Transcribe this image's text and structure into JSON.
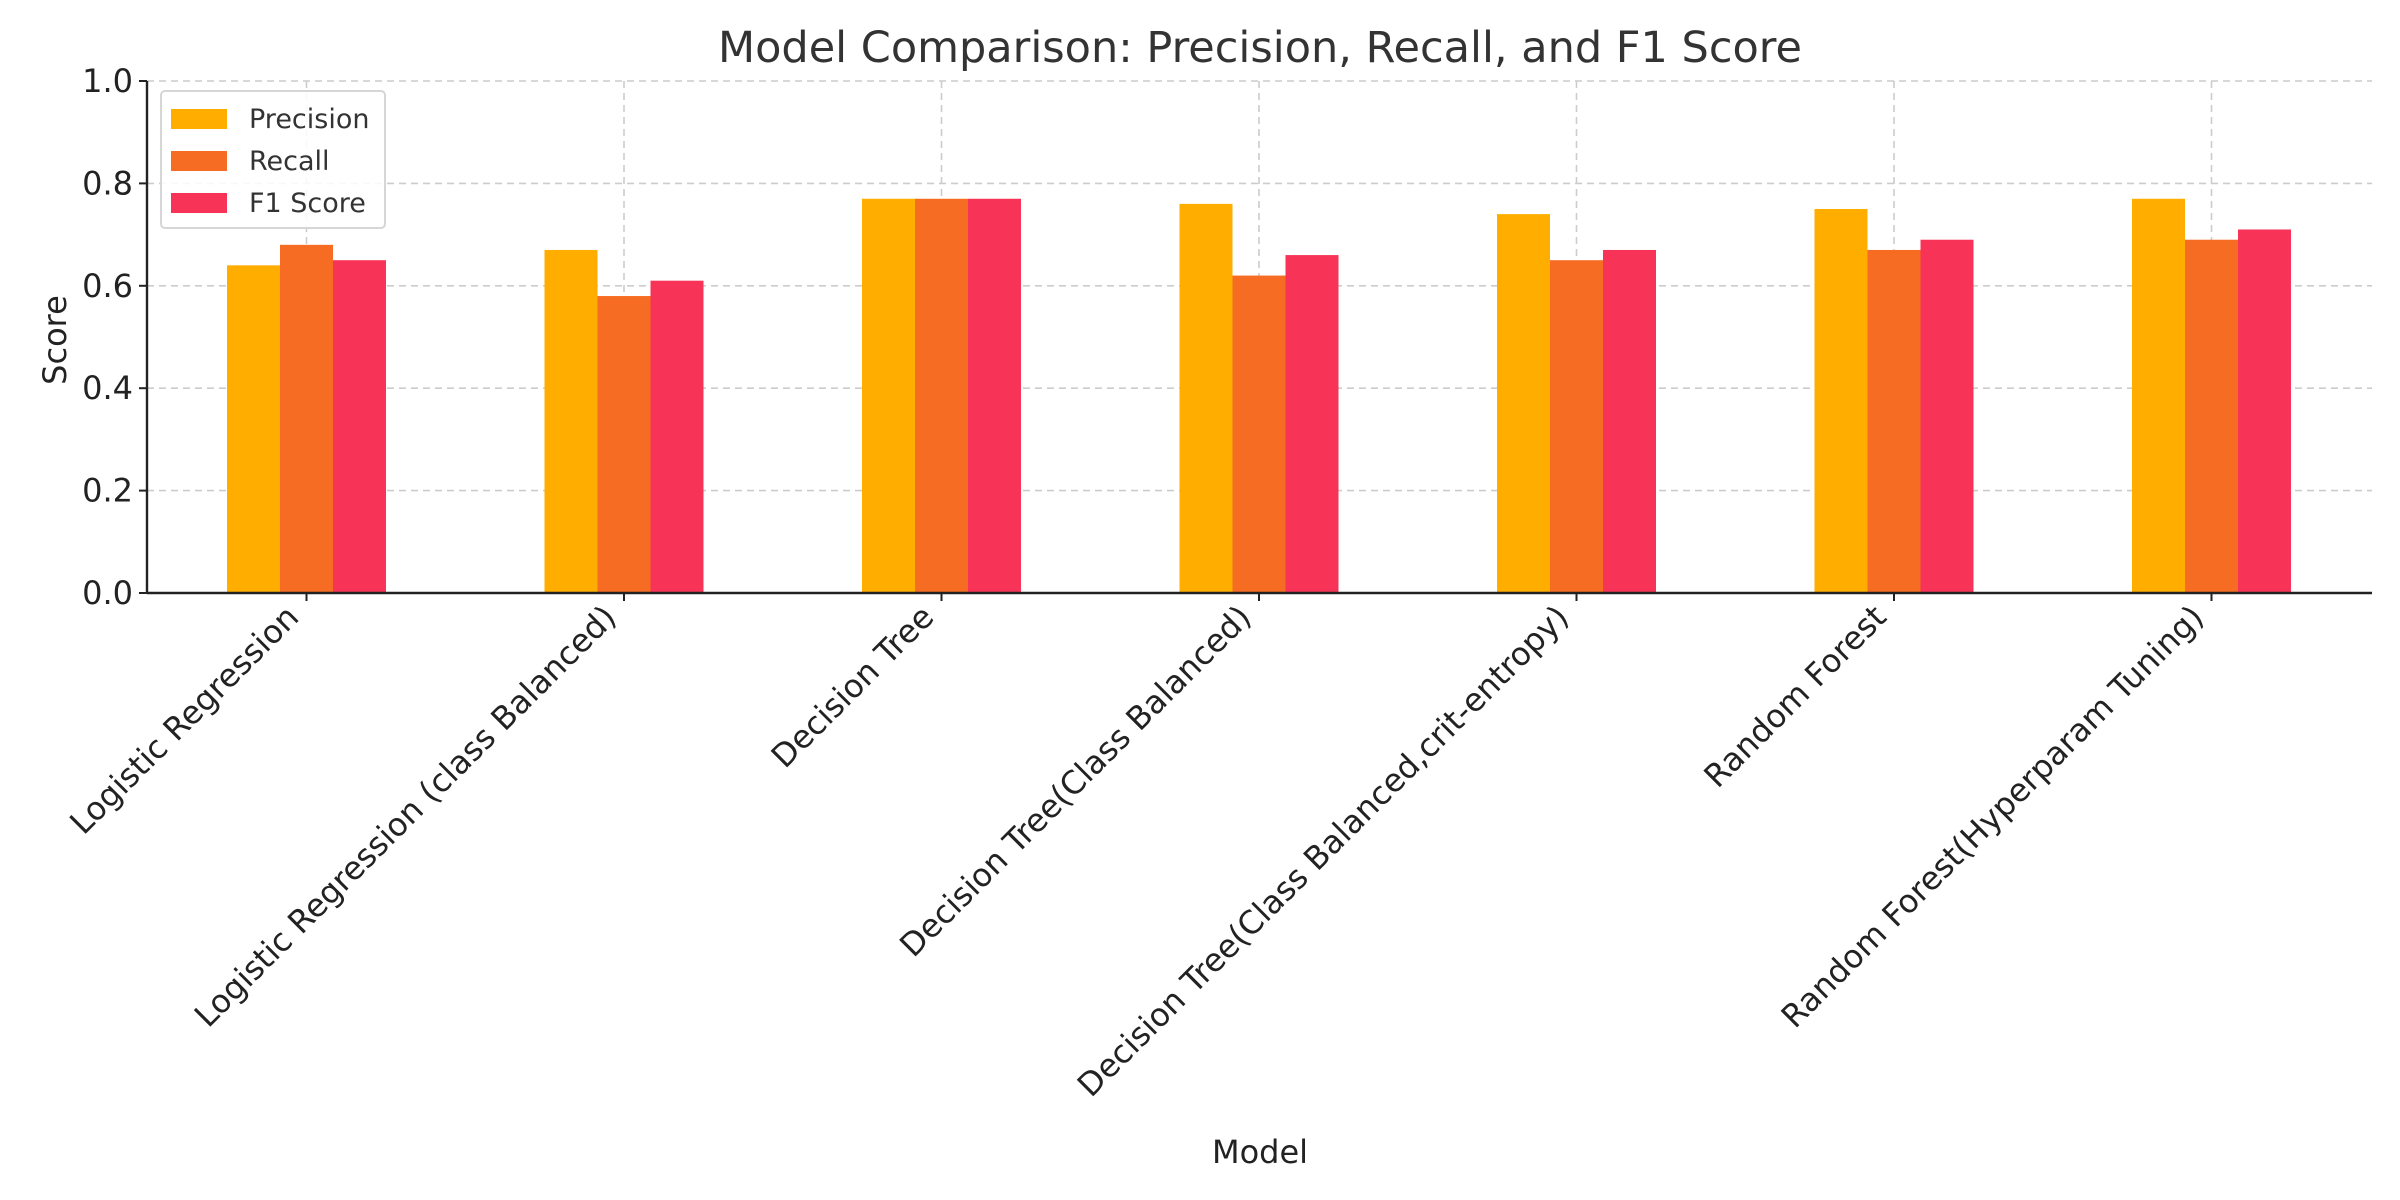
{
  "chart_data": {
    "type": "bar",
    "title": "Model Comparison: Precision, Recall, and F1 Score",
    "xlabel": "Model",
    "ylabel": "Score",
    "ylim": [
      0,
      1.0
    ],
    "yticks": [
      "0.0",
      "0.2",
      "0.4",
      "0.6",
      "0.8",
      "1.0"
    ],
    "grid": true,
    "legend_position": "top-left",
    "categories": [
      "Logistic Regression",
      "Logistic Regression (class Balanced)",
      "Decision Tree",
      "Decision Tree(Class Balanced)",
      "Decision Tree(Class Balanced,crit-entropy)",
      "Random Forest",
      "Random Forest(Hyperparam Tuning)"
    ],
    "series": [
      {
        "name": "Precision",
        "color": "#FFAE00",
        "values": [
          0.64,
          0.67,
          0.77,
          0.76,
          0.74,
          0.75,
          0.77
        ]
      },
      {
        "name": "Recall",
        "color": "#F66C22",
        "values": [
          0.68,
          0.58,
          0.77,
          0.62,
          0.65,
          0.67,
          0.69
        ]
      },
      {
        "name": "F1 Score",
        "color": "#F73458",
        "values": [
          0.65,
          0.61,
          0.77,
          0.66,
          0.67,
          0.69,
          0.71
        ]
      }
    ]
  }
}
